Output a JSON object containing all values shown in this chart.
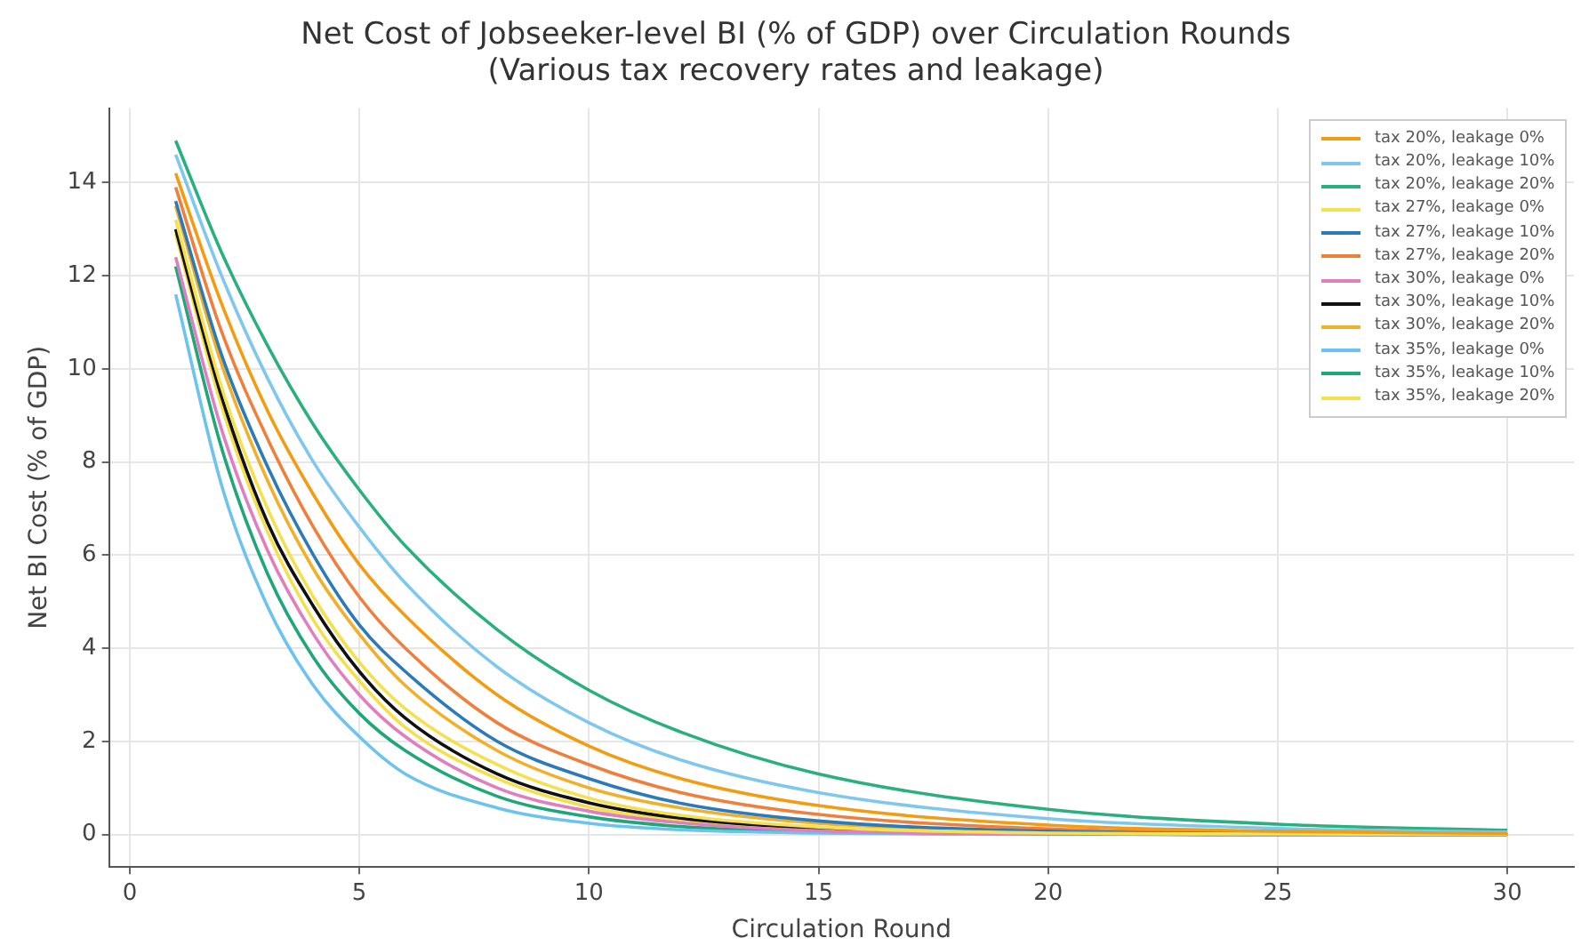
{
  "chart_data": {
    "type": "line",
    "title": "Net Cost of Jobseeker-level BI (% of GDP) over Circulation Rounds",
    "subtitle": "(Various tax recovery rates and leakage)",
    "xlabel": "Circulation Round",
    "ylabel": "Net BI Cost (% of GDP)",
    "x": [
      1,
      2,
      3,
      4,
      5,
      6,
      8,
      10,
      12,
      15,
      20,
      25,
      30
    ],
    "xlim": [
      -0.45,
      31.45
    ],
    "xticks": [
      0,
      5,
      10,
      15,
      20,
      25,
      30
    ],
    "ylim": [
      -0.7,
      15.6
    ],
    "yticks": [
      0,
      2,
      4,
      6,
      8,
      10,
      12,
      14
    ],
    "grid": true,
    "legend": "top right",
    "marker": "none",
    "line_style": "solid",
    "series": [
      {
        "name": "tax 20%, leakage 0%",
        "color": "#f39c12",
        "values": [
          14.2,
          11.4,
          9.1,
          7.3,
          5.8,
          4.7,
          3.0,
          1.9,
          1.2,
          0.62,
          0.2,
          0.07,
          0.02
        ]
      },
      {
        "name": "tax 20%, leakage 10%",
        "color": "#7ec8f0",
        "values": [
          14.6,
          12.0,
          9.8,
          8.0,
          6.6,
          5.4,
          3.6,
          2.4,
          1.6,
          0.9,
          0.34,
          0.13,
          0.05
        ]
      },
      {
        "name": "tax 20%, leakage 20%",
        "color": "#2ab07f",
        "values": [
          14.9,
          12.5,
          10.5,
          8.8,
          7.4,
          6.2,
          4.4,
          3.1,
          2.2,
          1.3,
          0.54,
          0.22,
          0.09
        ]
      },
      {
        "name": "tax 27%, leakage 0%",
        "color": "#f5e050",
        "values": [
          13.2,
          9.6,
          7.0,
          5.1,
          3.7,
          2.7,
          1.5,
          0.78,
          0.41,
          0.16,
          0.03,
          0.01,
          0.0
        ]
      },
      {
        "name": "tax 27%, leakage 10%",
        "color": "#2b7bba",
        "values": [
          13.6,
          10.3,
          7.9,
          6.0,
          4.5,
          3.5,
          2.0,
          1.2,
          0.67,
          0.29,
          0.07,
          0.02,
          0.0
        ]
      },
      {
        "name": "tax 27%, leakage 20%",
        "color": "#f07f3c",
        "values": [
          13.9,
          10.8,
          8.5,
          6.6,
          5.1,
          4.0,
          2.4,
          1.5,
          0.9,
          0.43,
          0.12,
          0.04,
          0.01
        ]
      },
      {
        "name": "tax 30%, leakage 0%",
        "color": "#e07fc0",
        "values": [
          12.4,
          8.7,
          6.1,
          4.3,
          3.0,
          2.1,
          1.0,
          0.5,
          0.25,
          0.08,
          0.01,
          0.0,
          0.0
        ]
      },
      {
        "name": "tax 30%, leakage 10%",
        "color": "#111111",
        "values": [
          13.0,
          9.4,
          6.7,
          4.9,
          3.5,
          2.5,
          1.3,
          0.68,
          0.35,
          0.13,
          0.02,
          0.0,
          0.0
        ]
      },
      {
        "name": "tax 30%, leakage 20%",
        "color": "#f2b02a",
        "values": [
          13.5,
          10.1,
          7.6,
          5.7,
          4.3,
          3.2,
          1.8,
          1.0,
          0.57,
          0.24,
          0.06,
          0.01,
          0.0
        ]
      },
      {
        "name": "tax 35%, leakage 0%",
        "color": "#6cc3f0",
        "values": [
          11.6,
          7.5,
          4.9,
          3.2,
          2.1,
          1.3,
          0.57,
          0.24,
          0.1,
          0.03,
          0.0,
          0.0,
          0.0
        ]
      },
      {
        "name": "tax 35%, leakage 10%",
        "color": "#1fa77a",
        "values": [
          12.2,
          8.3,
          5.6,
          3.8,
          2.6,
          1.8,
          0.82,
          0.38,
          0.17,
          0.05,
          0.01,
          0.0,
          0.0
        ]
      },
      {
        "name": "tax 35%, leakage 20%",
        "color": "#f4e04d",
        "values": [
          12.9,
          9.2,
          6.5,
          4.6,
          3.3,
          2.3,
          1.2,
          0.59,
          0.3,
          0.11,
          0.02,
          0.0,
          0.0
        ]
      }
    ]
  }
}
